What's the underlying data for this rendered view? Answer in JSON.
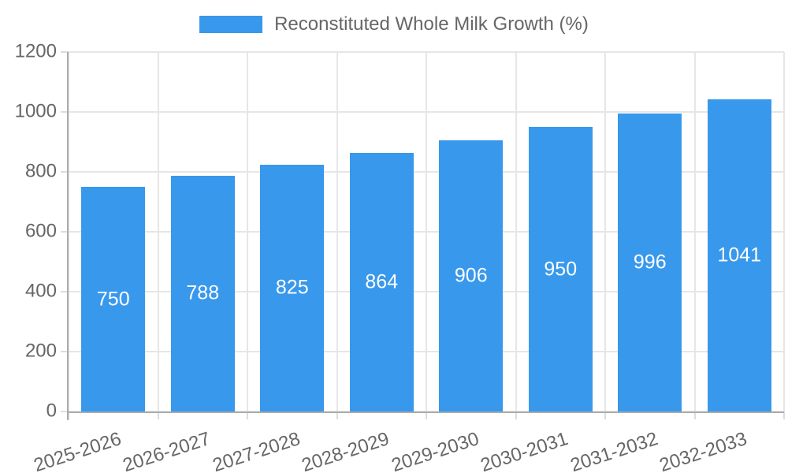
{
  "legend": {
    "label": "Reconstituted Whole Milk Growth (%)"
  },
  "chart_data": {
    "type": "bar",
    "title": "",
    "series_name": "Reconstituted Whole Milk Growth (%)",
    "categories": [
      "2025-2026",
      "2026-2027",
      "2027-2028",
      "2028-2029",
      "2029-2030",
      "2030-2031",
      "2031-2032",
      "2032-2033"
    ],
    "values": [
      750,
      788,
      825,
      864,
      906,
      950,
      996,
      1041
    ],
    "xlabel": "",
    "ylabel": "",
    "ylim": [
      0,
      1200
    ],
    "y_ticks": [
      0,
      200,
      400,
      600,
      800,
      1000,
      1200
    ],
    "grid": true,
    "legend_position": "top",
    "bar_color": "#3898EC",
    "value_label_color": "#FFFFFF",
    "tick_label_color": "#666666",
    "grid_color": "#E6E6E6",
    "axis_color": "#ACACAC"
  }
}
